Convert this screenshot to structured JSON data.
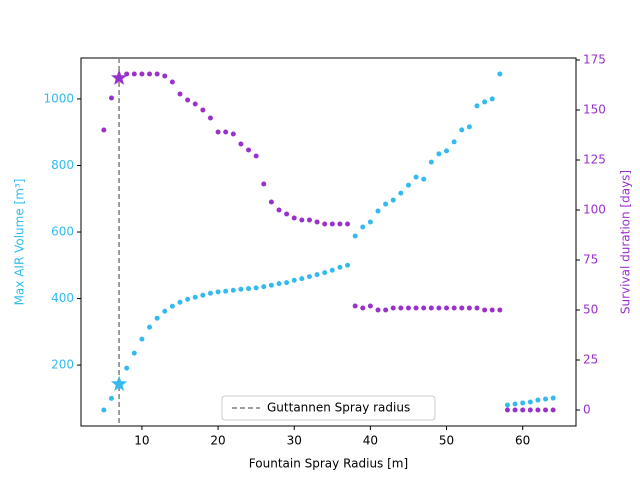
{
  "chart_data": {
    "type": "scatter",
    "xlabel": "Fountain Spray Radius [m]",
    "ylabel": "Max AIR Volume [m³]",
    "y2label": "Survival duration [days]",
    "xlim": [
      2,
      67
    ],
    "xticks": [
      10,
      20,
      30,
      40,
      50,
      60
    ],
    "ylim": [
      17,
      1123
    ],
    "yticks": [
      200,
      400,
      600,
      800,
      1000
    ],
    "y2lim": [
      -8,
      176
    ],
    "y2ticks": [
      0,
      25,
      50,
      75,
      100,
      125,
      150,
      175
    ],
    "x": [
      5,
      6,
      8,
      9,
      10,
      11,
      12,
      13,
      14,
      15,
      16,
      17,
      18,
      19,
      20,
      21,
      22,
      23,
      24,
      25,
      26,
      27,
      28,
      29,
      30,
      31,
      32,
      33,
      34,
      35,
      36,
      37,
      38,
      39,
      40,
      41,
      42,
      43,
      44,
      45,
      46,
      47,
      48,
      49,
      50,
      51,
      52,
      53,
      54,
      55,
      56,
      57,
      58,
      59,
      60,
      61,
      62,
      63,
      64
    ],
    "series": [
      {
        "color": "#33bbee",
        "axis": "y",
        "values": [
          65,
          100,
          191,
          236,
          278,
          314,
          341,
          362,
          377,
          389,
          398,
          404,
          410,
          416,
          420,
          422,
          425,
          428,
          430,
          432,
          436,
          440,
          445,
          448,
          455,
          460,
          466,
          472,
          478,
          485,
          494,
          500,
          588,
          615,
          630,
          663,
          684,
          696,
          717,
          741,
          765,
          759,
          810,
          835,
          844,
          871,
          907,
          916,
          979,
          991,
          1000,
          1075,
          80,
          83,
          86,
          89,
          95,
          98,
          101
        ]
      },
      {
        "color": "#9932cc",
        "axis": "y2",
        "values": [
          140,
          156,
          168,
          168,
          168,
          168,
          168,
          167,
          164,
          158,
          155,
          153,
          150,
          146,
          139,
          139,
          138,
          133,
          130,
          127,
          113,
          104,
          100,
          98,
          96,
          95,
          95,
          94,
          93,
          93,
          93,
          93,
          52,
          51,
          52,
          50,
          50,
          51,
          51,
          51,
          51,
          51,
          51,
          51,
          51,
          51,
          51,
          51,
          51,
          50,
          50,
          50,
          0,
          0,
          0,
          0,
          0,
          0,
          0
        ]
      }
    ],
    "stars": [
      {
        "x": 7,
        "y": 143,
        "axis": "y",
        "color": "#33bbee"
      },
      {
        "x": 7,
        "y": 166,
        "axis": "y2",
        "color": "#9932cc"
      }
    ],
    "vline": {
      "x": 7,
      "label": "Guttannen Spray radius",
      "color": "#808080"
    },
    "legend": "lower center"
  }
}
